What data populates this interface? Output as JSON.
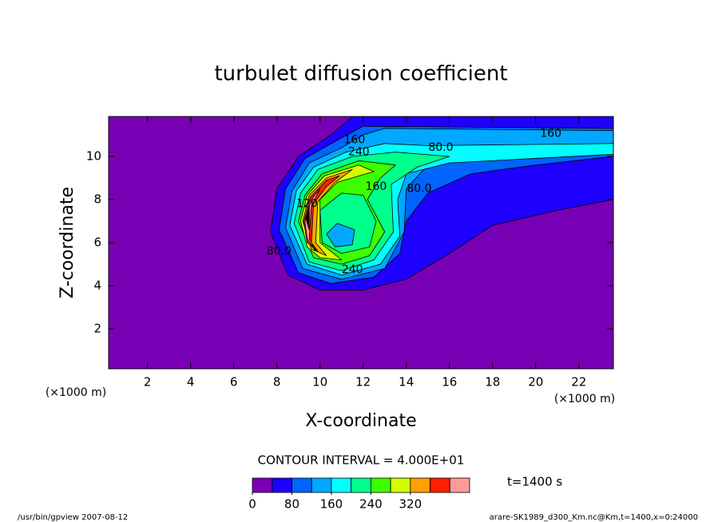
{
  "chart_data": {
    "type": "contour",
    "title": "turbulet diffusion coefficient",
    "x_label": "X-coordinate",
    "y_label": "Z-coordinate",
    "x_unit": "(×1000 m)",
    "y_unit": "(×1000 m)",
    "xlim": [
      0.2,
      23.6
    ],
    "ylim": [
      0.15,
      11.85
    ],
    "xticks": [
      2,
      4,
      6,
      8,
      10,
      12,
      14,
      16,
      18,
      20,
      22
    ],
    "yticks": [
      2,
      4,
      6,
      8,
      10
    ],
    "contour_interval": "CONTOUR INTERVAL = 4.000E+01",
    "time_label": "t=1400 s",
    "footer_left": "/usr/bin/gpview  2007-08-12",
    "footer_right": "arare-SK1989_d300_Km.nc@Km,t=1400,x=0:24000",
    "levels": [
      0,
      40,
      80,
      120,
      160,
      200,
      240,
      280,
      320,
      360,
      400,
      440
    ],
    "colors": [
      "#7800b4",
      "#1e00ff",
      "#0064ff",
      "#00a8ff",
      "#00ffff",
      "#00ff8c",
      "#3cff00",
      "#d2ff00",
      "#ffa000",
      "#ff1e00",
      "#ff9a9a"
    ],
    "colorbar_ticks": [
      0,
      80,
      160,
      240,
      320
    ],
    "contours": [
      {
        "level": 40,
        "points": [
          [
            7.7,
            6.5
          ],
          [
            8.0,
            8.5
          ],
          [
            9,
            10
          ],
          [
            10.5,
            11
          ],
          [
            11.5,
            11.85
          ],
          [
            23.6,
            11.85
          ],
          [
            23.6,
            8
          ],
          [
            21,
            7.5
          ],
          [
            18,
            6.8
          ],
          [
            16,
            5.5
          ],
          [
            14,
            4.3
          ],
          [
            12,
            3.8
          ],
          [
            10,
            3.8
          ],
          [
            8.5,
            4.5
          ]
        ]
      },
      {
        "level": 80,
        "points": [
          [
            8.1,
            6.6
          ],
          [
            8.4,
            8.5
          ],
          [
            9.3,
            9.9
          ],
          [
            10.7,
            10.7
          ],
          [
            12,
            11.4
          ],
          [
            23.6,
            11.3
          ],
          [
            23.6,
            10
          ],
          [
            20,
            9.6
          ],
          [
            17,
            9.2
          ],
          [
            15,
            8.3
          ],
          [
            14,
            7
          ],
          [
            13.7,
            5.5
          ],
          [
            12.5,
            4.4
          ],
          [
            10.5,
            4.1
          ],
          [
            9,
            4.6
          ]
        ]
      },
      {
        "level": 120,
        "points": [
          [
            8.4,
            6.7
          ],
          [
            8.7,
            8.4
          ],
          [
            9.5,
            9.7
          ],
          [
            11,
            10.4
          ],
          [
            12,
            11
          ],
          [
            13,
            11.3
          ],
          [
            23.6,
            11.2
          ],
          [
            23.6,
            10.3
          ],
          [
            18,
            10
          ],
          [
            15,
            9.6
          ],
          [
            14,
            8.5
          ],
          [
            13.9,
            6.5
          ],
          [
            13,
            4.8
          ],
          [
            11,
            4.3
          ],
          [
            9.2,
            4.8
          ]
        ]
      },
      {
        "level": 160,
        "points": [
          [
            8.6,
            6.8
          ],
          [
            8.9,
            8.4
          ],
          [
            9.7,
            9.5
          ],
          [
            11.2,
            10.2
          ],
          [
            13,
            10.6
          ],
          [
            15,
            10.5
          ],
          [
            23.6,
            10.6
          ],
          [
            23.6,
            10.1
          ],
          [
            16,
            9.7
          ],
          [
            14,
            9.2
          ],
          [
            13.6,
            8
          ],
          [
            13.7,
            6.3
          ],
          [
            12.8,
            5
          ],
          [
            11,
            4.5
          ],
          [
            9.4,
            5
          ]
        ]
      },
      {
        "level": 200,
        "points": [
          [
            8.8,
            6.9
          ],
          [
            9.1,
            8.3
          ],
          [
            9.9,
            9.4
          ],
          [
            11.5,
            10
          ],
          [
            13.5,
            10.2
          ],
          [
            16,
            10
          ],
          [
            14.5,
            9.5
          ],
          [
            13.3,
            8.7
          ],
          [
            13.4,
            6.5
          ],
          [
            12.5,
            5.2
          ],
          [
            11,
            4.7
          ],
          [
            9.5,
            5.1
          ]
        ]
      },
      {
        "level": 240,
        "points": [
          [
            9,
            7
          ],
          [
            9.3,
            8.2
          ],
          [
            10.1,
            9.2
          ],
          [
            11.8,
            9.8
          ],
          [
            13.5,
            9.6
          ],
          [
            12.8,
            9
          ],
          [
            12.2,
            8
          ],
          [
            13,
            6.5
          ],
          [
            12.3,
            5.4
          ],
          [
            11,
            5
          ],
          [
            9.7,
            5.3
          ]
        ]
      },
      {
        "level": 280,
        "points": [
          [
            9.1,
            7
          ],
          [
            9.4,
            8.2
          ],
          [
            10.2,
            9.1
          ],
          [
            11.8,
            9.6
          ],
          [
            12.5,
            9.3
          ],
          [
            10.8,
            8.8
          ],
          [
            10,
            8
          ],
          [
            10,
            6
          ],
          [
            11,
            5.2
          ],
          [
            10,
            5.3
          ],
          [
            9.4,
            5.8
          ]
        ]
      },
      {
        "level": 320,
        "points": [
          [
            9.2,
            7
          ],
          [
            9.5,
            8.2
          ],
          [
            10.3,
            9
          ],
          [
            11.5,
            9.4
          ],
          [
            10.7,
            8.8
          ],
          [
            9.9,
            7.9
          ],
          [
            9.8,
            6
          ],
          [
            10.3,
            5.4
          ],
          [
            9.6,
            5.7
          ]
        ]
      },
      {
        "level": 360,
        "points": [
          [
            9.25,
            7
          ],
          [
            9.55,
            8.1
          ],
          [
            10.3,
            8.9
          ],
          [
            10.9,
            9.1
          ],
          [
            10.3,
            8.6
          ],
          [
            9.7,
            7.8
          ],
          [
            9.6,
            6
          ],
          [
            9.9,
            5.6
          ],
          [
            9.4,
            6
          ]
        ]
      },
      {
        "level": 400,
        "points": [
          [
            9.3,
            7
          ],
          [
            9.6,
            8
          ],
          [
            10,
            8.5
          ],
          [
            9.6,
            7.7
          ],
          [
            9.5,
            6.2
          ],
          [
            9.8,
            5.6
          ],
          [
            9.4,
            6.2
          ]
        ]
      },
      {
        "level": 440,
        "points": [
          [
            9.35,
            7.1
          ],
          [
            9.5,
            7.7
          ],
          [
            9.5,
            6.6
          ]
        ]
      },
      {
        "level": 200,
        "points": [
          [
            10,
            7.5
          ],
          [
            11,
            8.3
          ],
          [
            12,
            8.2
          ],
          [
            12.6,
            7
          ],
          [
            12.3,
            5.8
          ],
          [
            11,
            5.5
          ],
          [
            10.1,
            6
          ]
        ]
      },
      {
        "level": 120,
        "points": [
          [
            10.3,
            6.4
          ],
          [
            10.8,
            6.9
          ],
          [
            11.6,
            6.6
          ],
          [
            11.5,
            5.9
          ],
          [
            10.7,
            5.8
          ]
        ]
      }
    ],
    "contour_labels": [
      {
        "text": "160",
        "x": 20.7,
        "y": 11.05
      },
      {
        "text": "80.0",
        "x": 15.6,
        "y": 10.4
      },
      {
        "text": "160",
        "x": 11.6,
        "y": 10.75
      },
      {
        "text": "240",
        "x": 11.8,
        "y": 10.2
      },
      {
        "text": "160",
        "x": 12.6,
        "y": 8.6
      },
      {
        "text": "80.0",
        "x": 14.6,
        "y": 8.5
      },
      {
        "text": "120",
        "x": 9.4,
        "y": 7.8
      },
      {
        "text": "240",
        "x": 11.5,
        "y": 4.75
      },
      {
        "text": "80.0",
        "x": 8.1,
        "y": 5.6
      }
    ]
  }
}
